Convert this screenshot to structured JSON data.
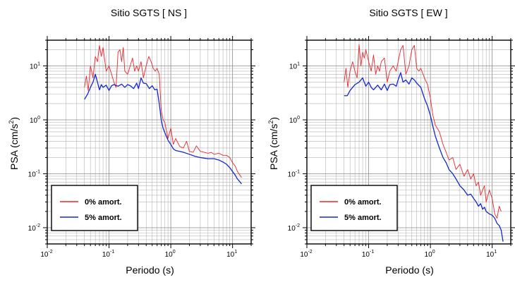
{
  "chart_data": [
    {
      "type": "line",
      "title": "Sitio SGTS [ NS ]",
      "xlabel": "Periodo (s)",
      "ylabel_text": "PSA (cm/s",
      "ylabel_sup": "2",
      "ylabel_close": ")",
      "xscale": "log",
      "yscale": "log",
      "xlim": [
        0.01,
        20
      ],
      "ylim": [
        0.005,
        30
      ],
      "grid": true,
      "legend_position": "bottom-left",
      "xticks": [
        {
          "base": "10",
          "exp": "-2"
        },
        {
          "base": "10",
          "exp": "-1"
        },
        {
          "base": "10",
          "exp": "0"
        },
        {
          "base": "10",
          "exp": "1"
        }
      ],
      "yticks": [
        {
          "base": "10",
          "exp": "-2"
        },
        {
          "base": "10",
          "exp": "-1"
        },
        {
          "base": "10",
          "exp": "0"
        },
        {
          "base": "10",
          "exp": "1"
        }
      ],
      "series": [
        {
          "name": "0% amort.",
          "color": "#e8262b",
          "x": [
            0.04,
            0.043,
            0.046,
            0.05,
            0.055,
            0.06,
            0.065,
            0.07,
            0.075,
            0.08,
            0.09,
            0.1,
            0.11,
            0.12,
            0.13,
            0.14,
            0.15,
            0.16,
            0.17,
            0.18,
            0.2,
            0.22,
            0.24,
            0.26,
            0.28,
            0.3,
            0.33,
            0.36,
            0.4,
            0.44,
            0.48,
            0.52,
            0.56,
            0.6,
            0.65,
            0.7,
            0.75,
            0.8,
            0.9,
            1.0,
            1.1,
            1.2,
            1.4,
            1.6,
            1.8,
            2.0,
            2.3,
            2.6,
            3.0,
            3.5,
            4.0,
            4.5,
            5.0,
            6.0,
            7.0,
            8.0,
            9.0,
            10.0,
            11.0,
            12.0,
            14.0
          ],
          "y": [
            4.0,
            6.5,
            3.5,
            10.0,
            6.0,
            15.0,
            12.0,
            24.0,
            15.0,
            22.0,
            8.0,
            10.0,
            7.0,
            5.0,
            4.0,
            18.0,
            20.0,
            12.0,
            22.0,
            8.0,
            7.0,
            10.0,
            14.0,
            8.0,
            10.0,
            8.0,
            12.0,
            6.0,
            10.0,
            15.0,
            12.0,
            9.0,
            8.0,
            9.0,
            7.0,
            1.5,
            1.0,
            0.9,
            0.45,
            0.7,
            0.35,
            0.45,
            0.32,
            0.3,
            0.4,
            0.26,
            0.25,
            0.33,
            0.26,
            0.25,
            0.24,
            0.25,
            0.23,
            0.24,
            0.22,
            0.22,
            0.2,
            0.16,
            0.14,
            0.11,
            0.085
          ]
        },
        {
          "name": "5% amort.",
          "color": "#1428cc",
          "x": [
            0.04,
            0.045,
            0.05,
            0.055,
            0.06,
            0.065,
            0.07,
            0.075,
            0.08,
            0.09,
            0.1,
            0.11,
            0.12,
            0.14,
            0.16,
            0.18,
            0.2,
            0.22,
            0.25,
            0.28,
            0.3,
            0.33,
            0.36,
            0.4,
            0.45,
            0.5,
            0.55,
            0.6,
            0.65,
            0.7,
            0.75,
            0.8,
            0.9,
            1.0,
            1.1,
            1.2,
            1.4,
            1.6,
            2.0,
            2.5,
            3.0,
            4.0,
            5.0,
            6.0,
            7.0,
            8.0,
            9.0,
            10.0,
            11.0,
            12.0,
            14.0
          ],
          "y": [
            2.4,
            3.0,
            4.0,
            5.0,
            7.0,
            5.0,
            3.6,
            4.5,
            4.0,
            4.4,
            3.5,
            4.3,
            4.5,
            4.2,
            4.6,
            4.0,
            4.5,
            4.3,
            3.8,
            4.8,
            3.8,
            6.0,
            4.8,
            4.7,
            3.8,
            4.3,
            3.6,
            3.7,
            2.0,
            1.0,
            0.7,
            0.58,
            0.42,
            0.35,
            0.29,
            0.27,
            0.26,
            0.25,
            0.23,
            0.21,
            0.2,
            0.19,
            0.19,
            0.18,
            0.165,
            0.15,
            0.13,
            0.11,
            0.095,
            0.08,
            0.065
          ]
        }
      ]
    },
    {
      "type": "line",
      "title": "Sitio SGTS [ EW ]",
      "xlabel": "Periodo (s)",
      "ylabel_text": "PSA (cm/s",
      "ylabel_sup": "2",
      "ylabel_close": ")",
      "xscale": "log",
      "yscale": "log",
      "xlim": [
        0.01,
        20
      ],
      "ylim": [
        0.005,
        30
      ],
      "grid": true,
      "legend_position": "bottom-left",
      "xticks": [
        {
          "base": "10",
          "exp": "-2"
        },
        {
          "base": "10",
          "exp": "-1"
        },
        {
          "base": "10",
          "exp": "0"
        },
        {
          "base": "10",
          "exp": "1"
        }
      ],
      "yticks": [
        {
          "base": "10",
          "exp": "-2"
        },
        {
          "base": "10",
          "exp": "-1"
        },
        {
          "base": "10",
          "exp": "0"
        },
        {
          "base": "10",
          "exp": "1"
        }
      ],
      "series": [
        {
          "name": "0% amort.",
          "color": "#e8262b",
          "x": [
            0.04,
            0.043,
            0.046,
            0.05,
            0.055,
            0.06,
            0.065,
            0.07,
            0.075,
            0.08,
            0.085,
            0.09,
            0.1,
            0.11,
            0.12,
            0.13,
            0.14,
            0.15,
            0.16,
            0.18,
            0.2,
            0.22,
            0.25,
            0.28,
            0.3,
            0.33,
            0.36,
            0.4,
            0.45,
            0.5,
            0.55,
            0.6,
            0.65,
            0.7,
            0.8,
            0.9,
            1.0,
            1.1,
            1.2,
            1.4,
            1.6,
            1.8,
            2.0,
            2.3,
            2.6,
            3.0,
            3.5,
            4.0,
            4.5,
            5.0,
            5.5,
            6.0,
            6.5,
            7.0,
            7.5,
            8.0,
            9.0,
            10.0,
            11.0,
            12.0,
            13.0,
            14.0
          ],
          "y": [
            5.0,
            9.0,
            4.0,
            8.0,
            12.0,
            8.0,
            6.0,
            25.0,
            10.0,
            18.0,
            14.0,
            20.0,
            12.0,
            8.0,
            16.0,
            7.0,
            10.0,
            8.0,
            12.0,
            14.0,
            5.0,
            8.0,
            10.0,
            8.0,
            12.0,
            20.0,
            24.0,
            7.0,
            10.0,
            20.0,
            24.0,
            9.0,
            8.0,
            9.0,
            6.0,
            4.5,
            2.5,
            1.2,
            0.8,
            0.6,
            0.35,
            0.25,
            0.18,
            0.2,
            0.12,
            0.15,
            0.09,
            0.12,
            0.08,
            0.1,
            0.06,
            0.07,
            0.04,
            0.05,
            0.06,
            0.03,
            0.05,
            0.035,
            0.018,
            0.015,
            0.025,
            0.02
          ]
        },
        {
          "name": "5% amort.",
          "color": "#1428cc",
          "x": [
            0.04,
            0.045,
            0.05,
            0.055,
            0.06,
            0.07,
            0.08,
            0.09,
            0.1,
            0.11,
            0.12,
            0.14,
            0.16,
            0.18,
            0.2,
            0.22,
            0.25,
            0.28,
            0.3,
            0.33,
            0.36,
            0.4,
            0.45,
            0.5,
            0.55,
            0.6,
            0.7,
            0.8,
            0.9,
            1.0,
            1.1,
            1.2,
            1.4,
            1.6,
            1.8,
            2.0,
            2.3,
            2.6,
            3.0,
            3.5,
            4.0,
            4.5,
            5.0,
            5.5,
            6.0,
            6.5,
            7.0,
            7.5,
            8.0,
            9.0,
            10.0,
            11.0,
            12.0,
            13.0,
            14.0,
            15.0
          ],
          "y": [
            2.8,
            2.8,
            3.5,
            4.0,
            4.5,
            5.0,
            6.0,
            4.2,
            5.0,
            4.0,
            3.6,
            4.4,
            3.6,
            4.6,
            3.5,
            4.5,
            4.6,
            4.2,
            5.5,
            7.5,
            5.0,
            5.5,
            4.6,
            6.0,
            5.5,
            4.8,
            4.0,
            2.5,
            1.8,
            1.2,
            0.75,
            0.5,
            0.3,
            0.2,
            0.16,
            0.12,
            0.1,
            0.08,
            0.06,
            0.05,
            0.04,
            0.042,
            0.035,
            0.03,
            0.025,
            0.028,
            0.022,
            0.024,
            0.02,
            0.018,
            0.017,
            0.015,
            0.012,
            0.011,
            0.009,
            0.0055
          ]
        }
      ]
    }
  ]
}
